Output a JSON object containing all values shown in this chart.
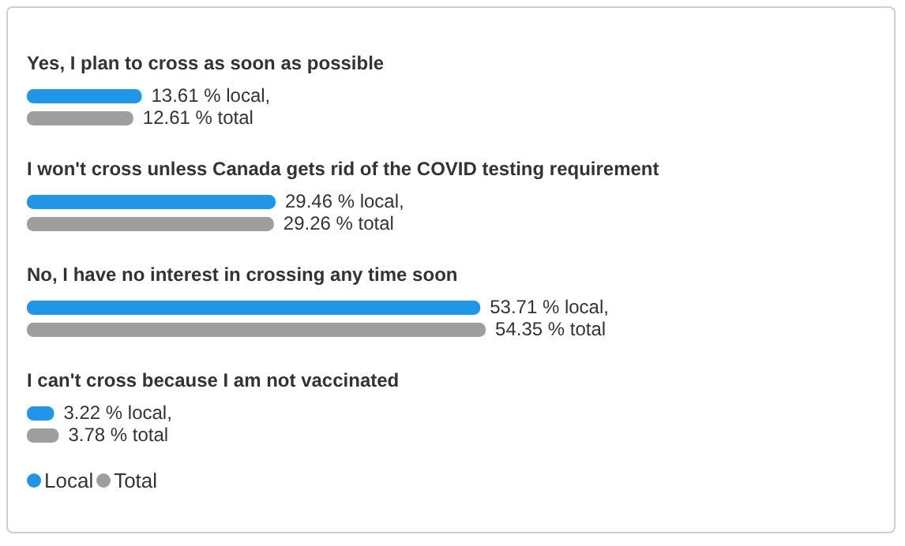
{
  "chart_data": {
    "type": "bar",
    "orientation": "horizontal",
    "categories": [
      "Yes, I plan to cross as soon as possible",
      "I won't cross unless Canada gets rid of the COVID testing requirement",
      "No, I have no interest in crossing any time soon",
      "I can't cross because I am not vaccinated"
    ],
    "series": [
      {
        "name": "Local",
        "color": "#2196e8",
        "values": [
          13.61,
          29.46,
          53.71,
          3.22
        ],
        "value_labels": [
          "13.61 % local,",
          "29.46 % local,",
          "53.71 % local,",
          "3.22 % local,"
        ]
      },
      {
        "name": "Total",
        "color": "#9e9e9e",
        "values": [
          12.61,
          29.26,
          54.35,
          3.78
        ],
        "value_labels": [
          "12.61 % total",
          "29.26 % total",
          "54.35 % total",
          "3.78 % total"
        ]
      }
    ],
    "tick_labels": false,
    "legend": "bottom left"
  }
}
